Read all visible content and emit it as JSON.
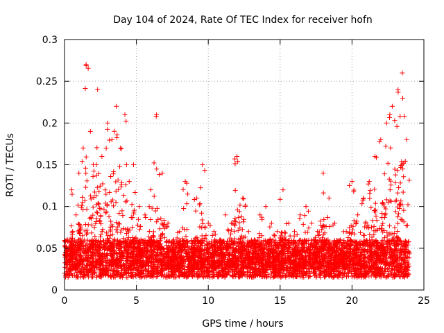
{
  "chart_data": {
    "type": "scatter",
    "title": "Day 104 of 2024, Rate Of TEC Index for receiver hofn",
    "xlabel": "GPS time / hours",
    "ylabel": "ROTI / TECUs",
    "xlim": [
      0,
      25
    ],
    "ylim": [
      0,
      0.3
    ],
    "xticks": [
      0,
      5,
      10,
      15,
      20,
      25
    ],
    "yticks": [
      0,
      0.05,
      0.1,
      0.15,
      0.2,
      0.25,
      0.3
    ],
    "grid": true,
    "marker": "+",
    "color": "#ff0000",
    "series": [
      {
        "name": "ROTI",
        "x": [
          0.2,
          0.5,
          0.8,
          1.0,
          1.3,
          1.5,
          1.8,
          2.0,
          2.3,
          2.6,
          3.0,
          3.3,
          3.6,
          3.9,
          4.2,
          4.5,
          4.8,
          5.2,
          5.6,
          6.0,
          6.4,
          6.8,
          7.2,
          7.6,
          8.0,
          8.4,
          8.8,
          9.2,
          9.6,
          10.0,
          10.4,
          10.8,
          11.2,
          11.6,
          12.0,
          12.4,
          12.8,
          13.2,
          13.6,
          14.0,
          14.4,
          14.8,
          15.2,
          15.6,
          16.0,
          16.4,
          16.8,
          17.2,
          17.6,
          18.0,
          18.4,
          18.8,
          19.2,
          19.6,
          20.0,
          20.4,
          20.8,
          21.2,
          21.6,
          22.0,
          22.4,
          22.8,
          23.2,
          23.5,
          23.8
        ],
        "y": [
          0.06,
          0.12,
          0.09,
          0.14,
          0.17,
          0.27,
          0.19,
          0.15,
          0.24,
          0.16,
          0.2,
          0.18,
          0.22,
          0.17,
          0.21,
          0.13,
          0.15,
          0.1,
          0.09,
          0.12,
          0.21,
          0.14,
          0.08,
          0.06,
          0.07,
          0.13,
          0.05,
          0.11,
          0.15,
          0.08,
          0.07,
          0.06,
          0.09,
          0.08,
          0.16,
          0.11,
          0.07,
          0.06,
          0.09,
          0.1,
          0.08,
          0.07,
          0.12,
          0.08,
          0.07,
          0.09,
          0.1,
          0.08,
          0.07,
          0.14,
          0.11,
          0.08,
          0.06,
          0.07,
          0.13,
          0.09,
          0.11,
          0.13,
          0.16,
          0.18,
          0.2,
          0.22,
          0.24,
          0.26,
          0.18
        ]
      }
    ]
  }
}
